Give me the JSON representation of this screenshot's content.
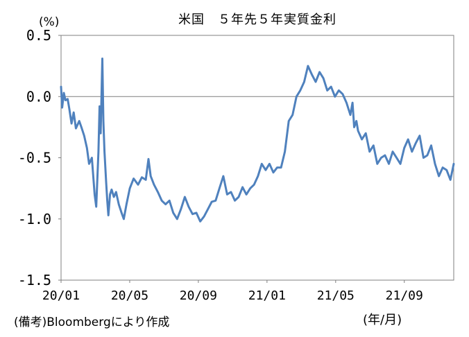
{
  "chart_data": {
    "type": "line",
    "title": "米国　５年先５年実質金利",
    "ylabel": "(%)",
    "xlabel": "(年/月)",
    "ylim": [
      -1.5,
      0.5
    ],
    "yticks": [
      "0.5",
      "0.0",
      "-0.5",
      "-1.0",
      "-1.5"
    ],
    "ytick_values": [
      0.5,
      0.0,
      -0.5,
      -1.0,
      -1.5
    ],
    "xticks": [
      "20/01",
      "20/05",
      "20/09",
      "21/01",
      "21/05",
      "21/09"
    ],
    "xlim": [
      "2020-01-01",
      "2021-12-15"
    ],
    "grid": false,
    "zero_line": true,
    "line_color": "#4f81bd",
    "series": [
      {
        "x": [
          "2020-01-01",
          "2020-01-03",
          "2020-01-06",
          "2020-01-09",
          "2020-01-13",
          "2020-01-16",
          "2020-01-20",
          "2020-01-24",
          "2020-01-28",
          "2020-02-03",
          "2020-02-07",
          "2020-02-12",
          "2020-02-17",
          "2020-02-21",
          "2020-02-26",
          "2020-03-02",
          "2020-03-05",
          "2020-03-09",
          "2020-03-11",
          "2020-03-13",
          "2020-03-16",
          "2020-03-18",
          "2020-03-20",
          "2020-03-23",
          "2020-03-25",
          "2020-03-27",
          "2020-03-30",
          "2020-04-02",
          "2020-04-06",
          "2020-04-10",
          "2020-04-15",
          "2020-04-20",
          "2020-04-24",
          "2020-04-29",
          "2020-05-05",
          "2020-05-12",
          "2020-05-20",
          "2020-05-27",
          "2020-06-03",
          "2020-06-08",
          "2020-06-12",
          "2020-06-18",
          "2020-06-25",
          "2020-07-02",
          "2020-07-09",
          "2020-07-16",
          "2020-07-23",
          "2020-07-30",
          "2020-08-06",
          "2020-08-13",
          "2020-08-20",
          "2020-08-27",
          "2020-09-03",
          "2020-09-10",
          "2020-09-17",
          "2020-09-24",
          "2020-10-01",
          "2020-10-08",
          "2020-10-15",
          "2020-10-22",
          "2020-10-29",
          "2020-11-05",
          "2020-11-12",
          "2020-11-19",
          "2020-11-26",
          "2020-12-03",
          "2020-12-10",
          "2020-12-17",
          "2020-12-24",
          "2020-12-31",
          "2021-01-07",
          "2021-01-14",
          "2021-01-21",
          "2021-01-28",
          "2021-02-04",
          "2021-02-11",
          "2021-02-18",
          "2021-02-25",
          "2021-03-04",
          "2021-03-11",
          "2021-03-18",
          "2021-03-25",
          "2021-04-01",
          "2021-04-08",
          "2021-04-15",
          "2021-04-22",
          "2021-04-29",
          "2021-05-06",
          "2021-05-13",
          "2021-05-20",
          "2021-05-27",
          "2021-06-03",
          "2021-06-10",
          "2021-06-14",
          "2021-06-17",
          "2021-06-21",
          "2021-06-24",
          "2021-07-01",
          "2021-07-08",
          "2021-07-15",
          "2021-07-22",
          "2021-07-29",
          "2021-08-05",
          "2021-08-12",
          "2021-08-19",
          "2021-08-26",
          "2021-09-02",
          "2021-09-09",
          "2021-09-16",
          "2021-09-23",
          "2021-09-30",
          "2021-10-07",
          "2021-10-14",
          "2021-10-21",
          "2021-10-28",
          "2021-11-04",
          "2021-11-11",
          "2021-11-18",
          "2021-11-25",
          "2021-12-02",
          "2021-12-09",
          "2021-12-15"
        ],
        "y": [
          0.08,
          -0.09,
          0.03,
          -0.03,
          -0.02,
          -0.1,
          -0.22,
          -0.13,
          -0.26,
          -0.2,
          -0.25,
          -0.32,
          -0.42,
          -0.55,
          -0.5,
          -0.8,
          -0.9,
          -0.45,
          -0.08,
          -0.3,
          0.31,
          -0.2,
          -0.45,
          -0.7,
          -0.85,
          -0.97,
          -0.8,
          -0.76,
          -0.82,
          -0.78,
          -0.88,
          -0.95,
          -1.0,
          -0.88,
          -0.75,
          -0.67,
          -0.72,
          -0.66,
          -0.68,
          -0.51,
          -0.65,
          -0.72,
          -0.78,
          -0.85,
          -0.88,
          -0.85,
          -0.95,
          -1.0,
          -0.92,
          -0.82,
          -0.9,
          -0.96,
          -0.95,
          -1.02,
          -0.98,
          -0.92,
          -0.86,
          -0.85,
          -0.75,
          -0.65,
          -0.8,
          -0.78,
          -0.85,
          -0.82,
          -0.74,
          -0.8,
          -0.75,
          -0.72,
          -0.65,
          -0.55,
          -0.6,
          -0.55,
          -0.62,
          -0.58,
          -0.58,
          -0.45,
          -0.2,
          -0.15,
          0.0,
          0.05,
          0.12,
          0.25,
          0.18,
          0.12,
          0.2,
          0.15,
          0.05,
          0.08,
          0.0,
          0.05,
          0.02,
          -0.05,
          -0.15,
          -0.05,
          -0.25,
          -0.2,
          -0.28,
          -0.35,
          -0.3,
          -0.45,
          -0.4,
          -0.55,
          -0.5,
          -0.48,
          -0.55,
          -0.45,
          -0.5,
          -0.55,
          -0.42,
          -0.35,
          -0.45,
          -0.38,
          -0.32,
          -0.5,
          -0.48,
          -0.4,
          -0.55,
          -0.65,
          -0.58,
          -0.6,
          -0.68,
          -0.55
        ]
      }
    ]
  },
  "source_note": "(備考)Bloombergにより作成"
}
